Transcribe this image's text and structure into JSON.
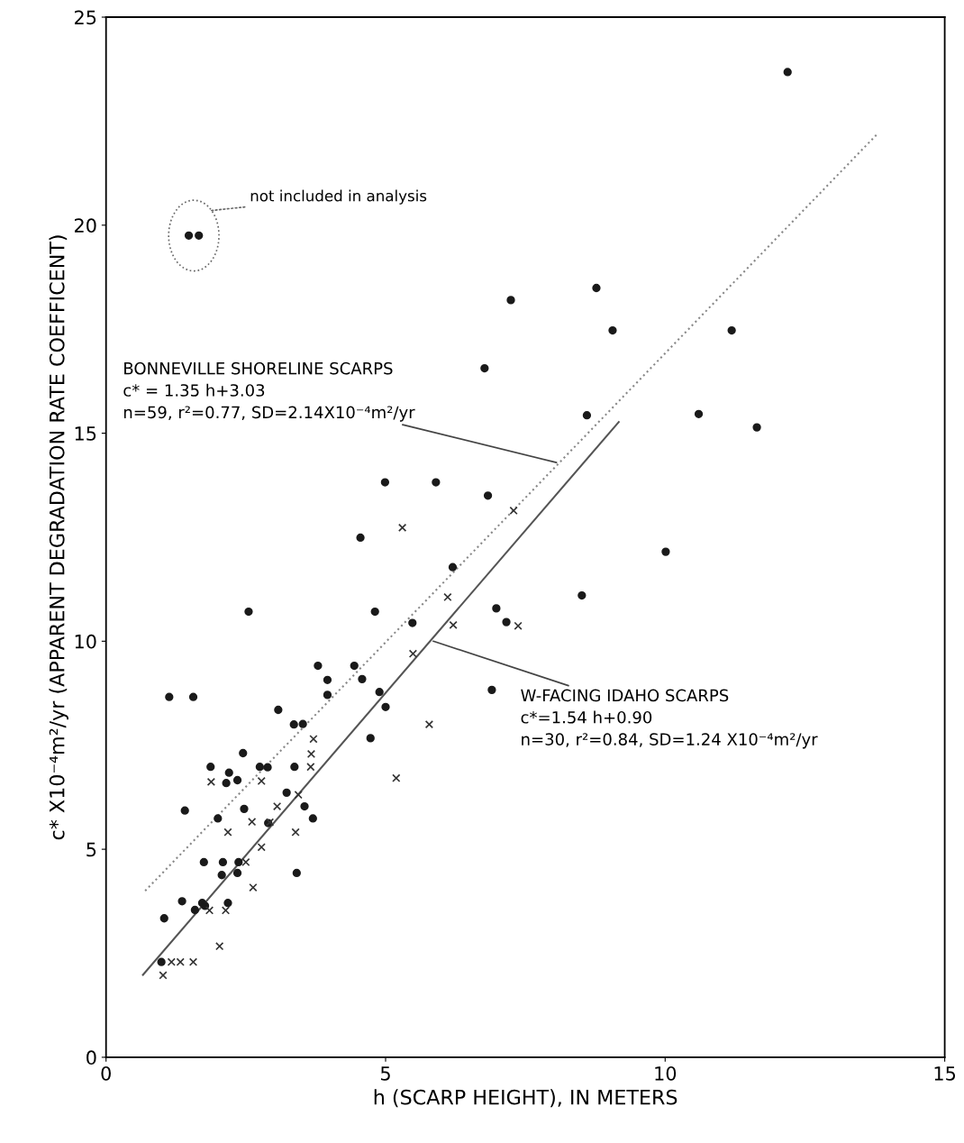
{
  "chart_data": {
    "type": "scatter",
    "xlabel": "h (SCARP HEIGHT), IN METERS",
    "ylabel": "c* X10⁻⁴m²/yr (APPARENT DEGRADATION RATE COEFFICENT)",
    "xlim": [
      0,
      15
    ],
    "ylim": [
      0,
      25
    ],
    "xticks": [
      0,
      5,
      10,
      15
    ],
    "yticks": [
      0,
      5,
      10,
      15,
      20,
      25
    ],
    "grid": false,
    "legend": false,
    "series": [
      {
        "type": "scatter",
        "marker": "circle",
        "color": "#1a1a1a",
        "x": [
          12.19,
          8.77,
          9.06,
          11.19,
          8.6,
          10.6,
          11.64,
          10.01,
          8.51,
          7.24,
          6.77,
          4.99,
          5.9,
          6.83,
          4.55,
          6.2,
          4.81,
          5.48,
          6.98,
          7.16,
          4.58,
          4.89,
          5.0,
          4.73,
          6.9,
          2.55,
          1.13,
          1.56,
          3.96,
          3.96,
          3.79,
          4.44,
          3.08,
          2.45,
          3.36,
          3.52,
          1.87,
          2.2,
          2.15,
          2.35,
          2.75,
          2.89,
          3.37,
          3.23,
          3.55,
          3.7,
          1.41,
          2.47,
          2.0,
          2.9,
          1.75,
          2.09,
          2.37,
          2.07,
          2.35,
          3.41,
          1.36,
          1.72,
          1.77,
          1.59,
          2.18,
          1.04,
          0.99
        ],
        "values": [
          23.68,
          18.49,
          17.47,
          17.47,
          15.43,
          15.46,
          15.14,
          12.15,
          11.1,
          18.2,
          16.56,
          13.82,
          13.82,
          13.5,
          12.49,
          11.78,
          10.71,
          10.44,
          10.79,
          10.46,
          9.09,
          8.78,
          8.42,
          7.67,
          8.83,
          10.71,
          8.66,
          8.66,
          9.07,
          8.71,
          9.41,
          9.41,
          8.35,
          7.31,
          8.0,
          8.01,
          6.98,
          6.84,
          6.59,
          6.66,
          6.98,
          6.97,
          6.98,
          6.36,
          6.03,
          5.74,
          5.93,
          5.97,
          5.74,
          5.63,
          4.69,
          4.69,
          4.69,
          4.38,
          4.43,
          4.43,
          3.75,
          3.71,
          3.64,
          3.54,
          3.71,
          3.34,
          2.29
        ]
      },
      {
        "type": "scatter",
        "marker": "circle",
        "color": "#1a1a1a",
        "x": [
          1.48,
          1.66
        ],
        "values": [
          19.75,
          19.75
        ]
      },
      {
        "type": "scatter",
        "marker": "cross",
        "color": "#333333",
        "x": [
          5.3,
          7.29,
          6.11,
          6.21,
          7.37,
          5.49,
          5.78,
          5.19,
          3.71,
          3.67,
          3.66,
          1.88,
          2.78,
          3.44,
          3.06,
          2.61,
          2.93,
          2.18,
          3.39,
          2.78,
          2.5,
          2.63,
          1.85,
          2.14,
          2.03,
          1.17,
          1.33,
          1.56,
          1.02
        ],
        "values": [
          12.73,
          13.14,
          11.06,
          10.39,
          10.37,
          9.7,
          8.0,
          6.71,
          7.65,
          7.29,
          6.98,
          6.62,
          6.64,
          6.31,
          6.03,
          5.66,
          5.65,
          5.41,
          5.41,
          5.05,
          4.69,
          4.08,
          3.53,
          3.53,
          2.67,
          2.29,
          2.29,
          2.29,
          1.97
        ]
      },
      {
        "type": "line",
        "line_style": "dotted",
        "color": "#888888",
        "x": [
          0.7,
          13.8
        ],
        "values": [
          4.0,
          22.2
        ]
      },
      {
        "type": "line",
        "line_style": "solid",
        "color": "#555555",
        "x": [
          0.66,
          9.17
        ],
        "values": [
          1.98,
          15.27
        ]
      }
    ],
    "annotations": [
      "not included in analysis",
      {
        "text": "BONNEVILLE SHORELINE SCARPS\nc* = 1.35 h+3.03\nn=59, r²=0.77, SD=2.14X10⁻⁴m²/yr",
        "x": 8.1,
        "y": 14.28
      },
      {
        "text": "W-FACING IDAHO SCARPS\nc*=1.54 h+0.90\nn=30, r²=0.84, SD=1.24 X10⁻⁴m²/yr",
        "x": 5.81,
        "y": 10.02
      }
    ]
  }
}
